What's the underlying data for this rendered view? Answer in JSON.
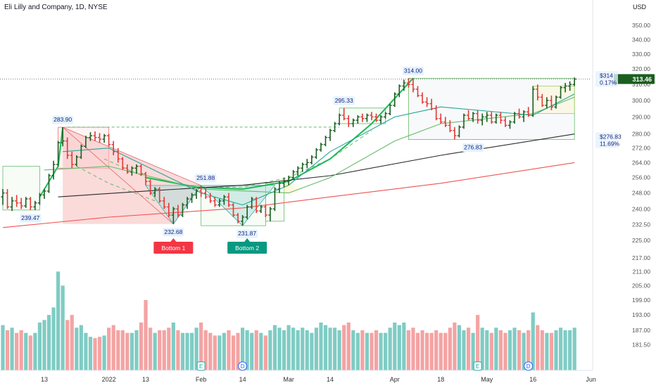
{
  "chart_data": {
    "type": "candlestick",
    "title": "Eli Lilly and Company, 1D, NYSE",
    "currency": "USD",
    "price_axis": {
      "scale": "log",
      "range": [
        176.5,
        356.5
      ],
      "ticks": [
        "350.00",
        "340.00",
        "330.00",
        "320.00",
        "310.00",
        "300.00",
        "290.00",
        "280.00",
        "272.00",
        "264.00",
        "256.00",
        "248.00",
        "240.00",
        "232.50",
        "225.00",
        "217.00",
        "211.00",
        "205.00",
        "199.00",
        "193.00",
        "187.00",
        "181.50"
      ]
    },
    "time_axis": {
      "labels": [
        {
          "text": "13",
          "date": "2021-12-13"
        },
        {
          "text": "2022",
          "date": "2022-01-03"
        },
        {
          "text": "13",
          "date": "2022-01-13"
        },
        {
          "text": "Feb",
          "date": "2022-02-01"
        },
        {
          "text": "14",
          "date": "2022-02-14"
        },
        {
          "text": "Mar",
          "date": "2022-03-01"
        },
        {
          "text": "14",
          "date": "2022-03-14"
        },
        {
          "text": "Apr",
          "date": "2022-04-01"
        },
        {
          "text": "18",
          "date": "2022-04-18"
        },
        {
          "text": "May",
          "date": "2022-05-02"
        },
        {
          "text": "16",
          "date": "2022-05-16"
        },
        {
          "text": "Jun",
          "date": "2022-06-01"
        }
      ]
    },
    "last_price": {
      "label": "313.46",
      "value": 313.46,
      "color": "#1b5e20"
    },
    "target_labels": [
      {
        "price_text": "$314",
        "pct_text": "0.17%",
        "value": 314.0
      },
      {
        "price_text": "$276.83",
        "pct_text": "11.69%",
        "value": 276.83
      }
    ],
    "price_labels": [
      {
        "text": "283.90",
        "date": "2021-12-17",
        "value": 283.9
      },
      {
        "text": "239.47",
        "date": "2021-12-08",
        "value": 239.47
      },
      {
        "text": "251.88",
        "date": "2022-02-02",
        "value": 251.88
      },
      {
        "text": "232.68",
        "date": "2022-01-24",
        "value": 232.68
      },
      {
        "text": "231.87",
        "date": "2022-02-15",
        "value": 231.87
      },
      {
        "text": "295.33",
        "date": "2022-03-17",
        "value": 295.33
      },
      {
        "text": "314.00",
        "date": "2022-04-07",
        "value": 314.0
      },
      {
        "text": "276.83",
        "date": "2022-04-27",
        "value": 276.83
      }
    ],
    "pattern_labels": [
      {
        "text": "Bottom 1",
        "date": "2022-01-24",
        "color": "#f23645"
      },
      {
        "text": "Bottom 2",
        "date": "2022-02-15",
        "color": "#089981"
      }
    ],
    "earnings_markers": [
      {
        "text": "E",
        "date": "2022-02-01"
      },
      {
        "text": "D",
        "date": "2022-02-14"
      },
      {
        "text": "E",
        "date": "2022-04-28"
      },
      {
        "text": "D",
        "date": "2022-05-13"
      }
    ],
    "bars": [
      [
        "2021-11-30",
        246.0,
        250.0,
        242.0,
        248.0,
        189
      ],
      [
        "2021-12-01",
        248.0,
        250.0,
        240.0,
        241.0,
        187
      ],
      [
        "2021-12-02",
        241.0,
        246.0,
        239.0,
        244.0,
        188
      ],
      [
        "2021-12-03",
        244.0,
        247.0,
        241.0,
        243.0,
        186
      ],
      [
        "2021-12-06",
        243.0,
        245.5,
        240.0,
        241.5,
        187
      ],
      [
        "2021-12-07",
        241.5,
        246.0,
        240.5,
        245.0,
        186
      ],
      [
        "2021-12-08",
        245.0,
        246.0,
        239.5,
        241.0,
        185
      ],
      [
        "2021-12-09",
        241.0,
        244.0,
        239.5,
        243.0,
        186
      ],
      [
        "2021-12-10",
        243.0,
        248.0,
        242.0,
        247.0,
        190
      ],
      [
        "2021-12-13",
        247.0,
        250.0,
        245.0,
        249.0,
        191
      ],
      [
        "2021-12-14",
        249.0,
        258.0,
        248.0,
        257.0,
        193
      ],
      [
        "2021-12-15",
        257.0,
        265.0,
        255.0,
        263.0,
        196
      ],
      [
        "2021-12-16",
        263.0,
        276.0,
        262.0,
        275.0,
        211
      ],
      [
        "2021-12-17",
        275.0,
        283.9,
        273.0,
        276.0,
        205
      ],
      [
        "2021-12-20",
        276.0,
        278.0,
        266.0,
        268.0,
        191
      ],
      [
        "2021-12-21",
        268.0,
        270.0,
        261.0,
        263.0,
        193
      ],
      [
        "2021-12-22",
        263.0,
        268.0,
        262.0,
        267.0,
        188
      ],
      [
        "2021-12-23",
        267.0,
        274.0,
        266.0,
        273.0,
        189
      ],
      [
        "2021-12-27",
        273.0,
        279.0,
        272.0,
        278.0,
        186
      ],
      [
        "2021-12-28",
        278.0,
        281.0,
        276.0,
        279.0,
        184.5
      ],
      [
        "2021-12-29",
        279.0,
        281.5,
        276.0,
        278.0,
        184
      ],
      [
        "2021-12-30",
        278.0,
        280.5,
        275.0,
        277.0,
        184.5
      ],
      [
        "2021-12-31",
        277.0,
        280.0,
        275.0,
        279.0,
        185
      ],
      [
        "2022-01-03",
        279.0,
        280.0,
        273.0,
        274.0,
        188
      ],
      [
        "2022-01-04",
        274.0,
        276.0,
        268.0,
        270.0,
        189
      ],
      [
        "2022-01-05",
        270.0,
        272.0,
        264.0,
        266.0,
        187
      ],
      [
        "2022-01-06",
        266.0,
        267.0,
        260.0,
        261.0,
        187
      ],
      [
        "2022-01-07",
        261.0,
        263.0,
        258.0,
        259.0,
        186
      ],
      [
        "2022-01-10",
        259.0,
        262.0,
        257.0,
        261.0,
        186
      ],
      [
        "2022-01-11",
        261.0,
        263.0,
        258.0,
        262.0,
        187
      ],
      [
        "2022-01-12",
        262.0,
        263.0,
        257.0,
        258.0,
        190
      ],
      [
        "2022-01-13",
        258.0,
        259.0,
        252.0,
        254.0,
        199
      ],
      [
        "2022-01-14",
        254.0,
        255.0,
        247.0,
        248.0,
        188
      ],
      [
        "2022-01-18",
        248.0,
        251.0,
        246.0,
        250.0,
        186
      ],
      [
        "2022-01-19",
        250.0,
        251.0,
        243.0,
        244.0,
        187
      ],
      [
        "2022-01-20",
        244.0,
        246.0,
        240.0,
        241.0,
        187
      ],
      [
        "2022-01-21",
        241.0,
        243.0,
        236.0,
        237.0,
        188
      ],
      [
        "2022-01-24",
        237.0,
        241.0,
        232.68,
        240.0,
        190
      ],
      [
        "2022-01-25",
        240.0,
        242.0,
        236.0,
        237.0,
        187
      ],
      [
        "2022-01-26",
        237.0,
        243.0,
        236.0,
        242.0,
        186
      ],
      [
        "2022-01-27",
        242.0,
        246.0,
        240.0,
        245.0,
        186
      ],
      [
        "2022-01-28",
        245.0,
        248.0,
        243.0,
        247.0,
        186
      ],
      [
        "2022-01-31",
        247.0,
        250.0,
        245.0,
        249.0,
        188
      ],
      [
        "2022-02-01",
        249.0,
        251.88,
        246.0,
        248.0,
        190
      ],
      [
        "2022-02-02",
        248.0,
        251.0,
        245.0,
        246.0,
        187
      ],
      [
        "2022-02-03",
        246.0,
        248.0,
        243.0,
        244.0,
        186
      ],
      [
        "2022-02-04",
        244.0,
        246.0,
        241.0,
        242.0,
        185
      ],
      [
        "2022-02-07",
        242.0,
        245.0,
        241.0,
        244.0,
        185
      ],
      [
        "2022-02-08",
        244.0,
        247.0,
        242.0,
        246.0,
        186
      ],
      [
        "2022-02-09",
        246.0,
        248.0,
        241.0,
        242.0,
        187
      ],
      [
        "2022-02-10",
        242.0,
        243.0,
        236.0,
        237.0,
        185
      ],
      [
        "2022-02-11",
        237.0,
        238.0,
        233.0,
        234.0,
        186
      ],
      [
        "2022-02-14",
        234.0,
        237.0,
        231.87,
        236.0,
        188
      ],
      [
        "2022-02-15",
        236.0,
        242.0,
        235.0,
        241.0,
        187
      ],
      [
        "2022-02-16",
        241.0,
        246.0,
        240.0,
        245.0,
        186
      ],
      [
        "2022-02-17",
        245.0,
        246.0,
        238.0,
        239.0,
        187
      ],
      [
        "2022-02-18",
        239.0,
        242.0,
        238.0,
        241.0,
        186
      ],
      [
        "2022-02-22",
        241.0,
        242.0,
        236.0,
        237.0,
        185
      ],
      [
        "2022-02-23",
        237.0,
        241.0,
        234.0,
        240.0,
        187
      ],
      [
        "2022-02-24",
        240.0,
        251.0,
        239.0,
        250.0,
        189
      ],
      [
        "2022-02-25",
        250.0,
        254.0,
        248.0,
        253.0,
        188
      ],
      [
        "2022-02-28",
        253.0,
        256.0,
        251.0,
        254.0,
        187
      ],
      [
        "2022-03-01",
        254.0,
        257.0,
        252.0,
        256.0,
        189
      ],
      [
        "2022-03-02",
        256.0,
        260.0,
        255.0,
        259.0,
        188
      ],
      [
        "2022-03-03",
        259.0,
        262.0,
        257.0,
        261.0,
        187
      ],
      [
        "2022-03-04",
        261.0,
        264.0,
        259.0,
        263.0,
        188
      ],
      [
        "2022-03-07",
        263.0,
        266.0,
        261.0,
        264.0,
        187
      ],
      [
        "2022-03-08",
        264.0,
        268.0,
        263.0,
        267.0,
        186
      ],
      [
        "2022-03-09",
        267.0,
        272.0,
        266.0,
        271.0,
        188
      ],
      [
        "2022-03-10",
        271.0,
        275.0,
        270.0,
        274.0,
        190
      ],
      [
        "2022-03-11",
        274.0,
        279.0,
        273.0,
        278.0,
        189
      ],
      [
        "2022-03-14",
        278.0,
        283.0,
        276.0,
        282.0,
        188
      ],
      [
        "2022-03-15",
        282.0,
        287.0,
        281.0,
        286.0,
        188
      ],
      [
        "2022-03-16",
        286.0,
        292.0,
        285.0,
        291.0,
        187
      ],
      [
        "2022-03-17",
        291.0,
        295.33,
        288.0,
        289.0,
        189
      ],
      [
        "2022-03-18",
        289.0,
        291.0,
        284.0,
        286.0,
        190
      ],
      [
        "2022-03-21",
        286.0,
        289.0,
        284.0,
        288.0,
        187
      ],
      [
        "2022-03-22",
        288.0,
        291.0,
        286.0,
        290.0,
        186
      ],
      [
        "2022-03-23",
        290.0,
        292.0,
        287.0,
        289.0,
        187
      ],
      [
        "2022-03-24",
        289.0,
        292.0,
        287.0,
        291.0,
        186
      ],
      [
        "2022-03-25",
        291.0,
        293.0,
        288.0,
        290.0,
        186
      ],
      [
        "2022-03-28",
        290.0,
        292.0,
        287.0,
        288.0,
        187
      ],
      [
        "2022-03-29",
        288.0,
        291.0,
        286.0,
        290.0,
        186
      ],
      [
        "2022-03-30",
        290.0,
        293.0,
        289.0,
        292.0,
        186
      ],
      [
        "2022-03-31",
        292.0,
        298.0,
        291.0,
        297.0,
        188
      ],
      [
        "2022-04-01",
        297.0,
        305.0,
        296.0,
        304.0,
        190
      ],
      [
        "2022-04-04",
        304.0,
        310.0,
        302.0,
        309.0,
        189
      ],
      [
        "2022-04-05",
        309.0,
        313.0,
        306.0,
        311.0,
        190
      ],
      [
        "2022-04-06",
        311.0,
        314.0,
        308.0,
        310.0,
        187
      ],
      [
        "2022-04-07",
        310.0,
        314.0,
        305.0,
        307.0,
        188
      ],
      [
        "2022-04-08",
        307.0,
        309.0,
        302.0,
        303.0,
        186
      ],
      [
        "2022-04-11",
        303.0,
        305.0,
        298.0,
        299.0,
        187
      ],
      [
        "2022-04-12",
        299.0,
        302.0,
        296.0,
        298.0,
        186
      ],
      [
        "2022-04-13",
        298.0,
        301.0,
        294.0,
        295.0,
        186
      ],
      [
        "2022-04-14",
        295.0,
        297.0,
        288.0,
        289.0,
        187
      ],
      [
        "2022-04-18",
        289.0,
        292.0,
        286.0,
        287.0,
        186
      ],
      [
        "2022-04-19",
        287.0,
        290.0,
        284.0,
        285.0,
        186
      ],
      [
        "2022-04-20",
        285.0,
        288.0,
        281.0,
        282.0,
        188
      ],
      [
        "2022-04-21",
        282.0,
        284.0,
        276.83,
        279.0,
        190
      ],
      [
        "2022-04-22",
        279.0,
        285.0,
        278.0,
        284.0,
        189
      ],
      [
        "2022-04-25",
        284.0,
        292.0,
        283.0,
        291.0,
        187
      ],
      [
        "2022-04-26",
        291.0,
        294.0,
        288.0,
        289.0,
        188
      ],
      [
        "2022-04-27",
        289.0,
        293.0,
        287.0,
        292.0,
        186
      ],
      [
        "2022-04-28",
        292.0,
        294.0,
        286.0,
        288.0,
        193
      ],
      [
        "2022-04-29",
        288.0,
        292.0,
        285.0,
        290.0,
        188
      ],
      [
        "2022-05-02",
        290.0,
        293.0,
        287.0,
        291.0,
        187
      ],
      [
        "2022-05-03",
        291.0,
        293.0,
        286.0,
        287.0,
        186
      ],
      [
        "2022-05-04",
        287.0,
        292.0,
        286.0,
        291.0,
        188
      ],
      [
        "2022-05-05",
        291.0,
        293.0,
        286.0,
        288.0,
        187
      ],
      [
        "2022-05-06",
        288.0,
        290.0,
        284.0,
        285.0,
        186
      ],
      [
        "2022-05-09",
        285.0,
        288.0,
        283.0,
        287.0,
        187
      ],
      [
        "2022-05-10",
        287.0,
        293.0,
        286.0,
        292.0,
        188
      ],
      [
        "2022-05-11",
        292.0,
        295.0,
        289.0,
        290.0,
        187
      ],
      [
        "2022-05-12",
        290.0,
        294.0,
        287.0,
        293.0,
        186
      ],
      [
        "2022-05-13",
        293.0,
        296.0,
        290.0,
        291.0,
        187
      ],
      [
        "2022-05-16",
        291.0,
        309.0,
        290.0,
        307.0,
        194
      ],
      [
        "2022-05-17",
        307.0,
        310.0,
        300.0,
        302.0,
        189
      ],
      [
        "2022-05-18",
        302.0,
        304.0,
        296.0,
        297.0,
        187
      ],
      [
        "2022-05-19",
        297.0,
        302.0,
        295.0,
        300.0,
        186
      ],
      [
        "2022-05-20",
        300.0,
        303.0,
        294.0,
        296.0,
        186
      ],
      [
        "2022-05-23",
        296.0,
        303.0,
        295.0,
        302.0,
        187
      ],
      [
        "2022-05-24",
        302.0,
        309.0,
        301.0,
        308.0,
        188
      ],
      [
        "2022-05-25",
        308.0,
        311.0,
        305.0,
        309.0,
        187
      ],
      [
        "2022-05-26",
        309.0,
        312.0,
        306.0,
        310.0,
        187
      ],
      [
        "2022-05-27",
        310.0,
        314.5,
        309.0,
        313.46,
        188
      ]
    ],
    "moving_averages": [
      {
        "color": "#ef5350",
        "points": [
          [
            "2021-11-30",
            231.0
          ],
          [
            "2022-01-03",
            236.0
          ],
          [
            "2022-02-14",
            240.5
          ],
          [
            "2022-03-14",
            246.0
          ],
          [
            "2022-04-18",
            253.0
          ],
          [
            "2022-05-27",
            264.0
          ]
        ]
      },
      {
        "color": "#2b2b2b",
        "points": [
          [
            "2021-12-16",
            246.0
          ],
          [
            "2022-01-13",
            249.0
          ],
          [
            "2022-02-14",
            252.0
          ],
          [
            "2022-03-14",
            257.0
          ],
          [
            "2022-04-18",
            268.0
          ],
          [
            "2022-05-27",
            280.0
          ]
        ]
      },
      {
        "color": "#66bb6a",
        "points": [
          [
            "2021-12-13",
            260.0
          ],
          [
            "2022-01-03",
            262.0
          ],
          [
            "2022-02-01",
            250.0
          ],
          [
            "2022-03-01",
            248.0
          ],
          [
            "2022-03-14",
            256.0
          ],
          [
            "2022-04-01",
            276.0
          ],
          [
            "2022-04-18",
            286.0
          ],
          [
            "2022-05-16",
            292.0
          ],
          [
            "2022-05-27",
            302.0
          ]
        ]
      },
      {
        "color": "#26a69a",
        "points": [
          [
            "2021-12-17",
            270.0
          ],
          [
            "2022-01-03",
            272.0
          ],
          [
            "2022-02-01",
            248.0
          ],
          [
            "2022-02-14",
            242.0
          ],
          [
            "2022-03-01",
            252.0
          ],
          [
            "2022-03-14",
            270.0
          ],
          [
            "2022-04-01",
            290.0
          ],
          [
            "2022-04-18",
            296.0
          ],
          [
            "2022-05-16",
            291.0
          ],
          [
            "2022-05-27",
            304.0
          ]
        ]
      }
    ]
  }
}
